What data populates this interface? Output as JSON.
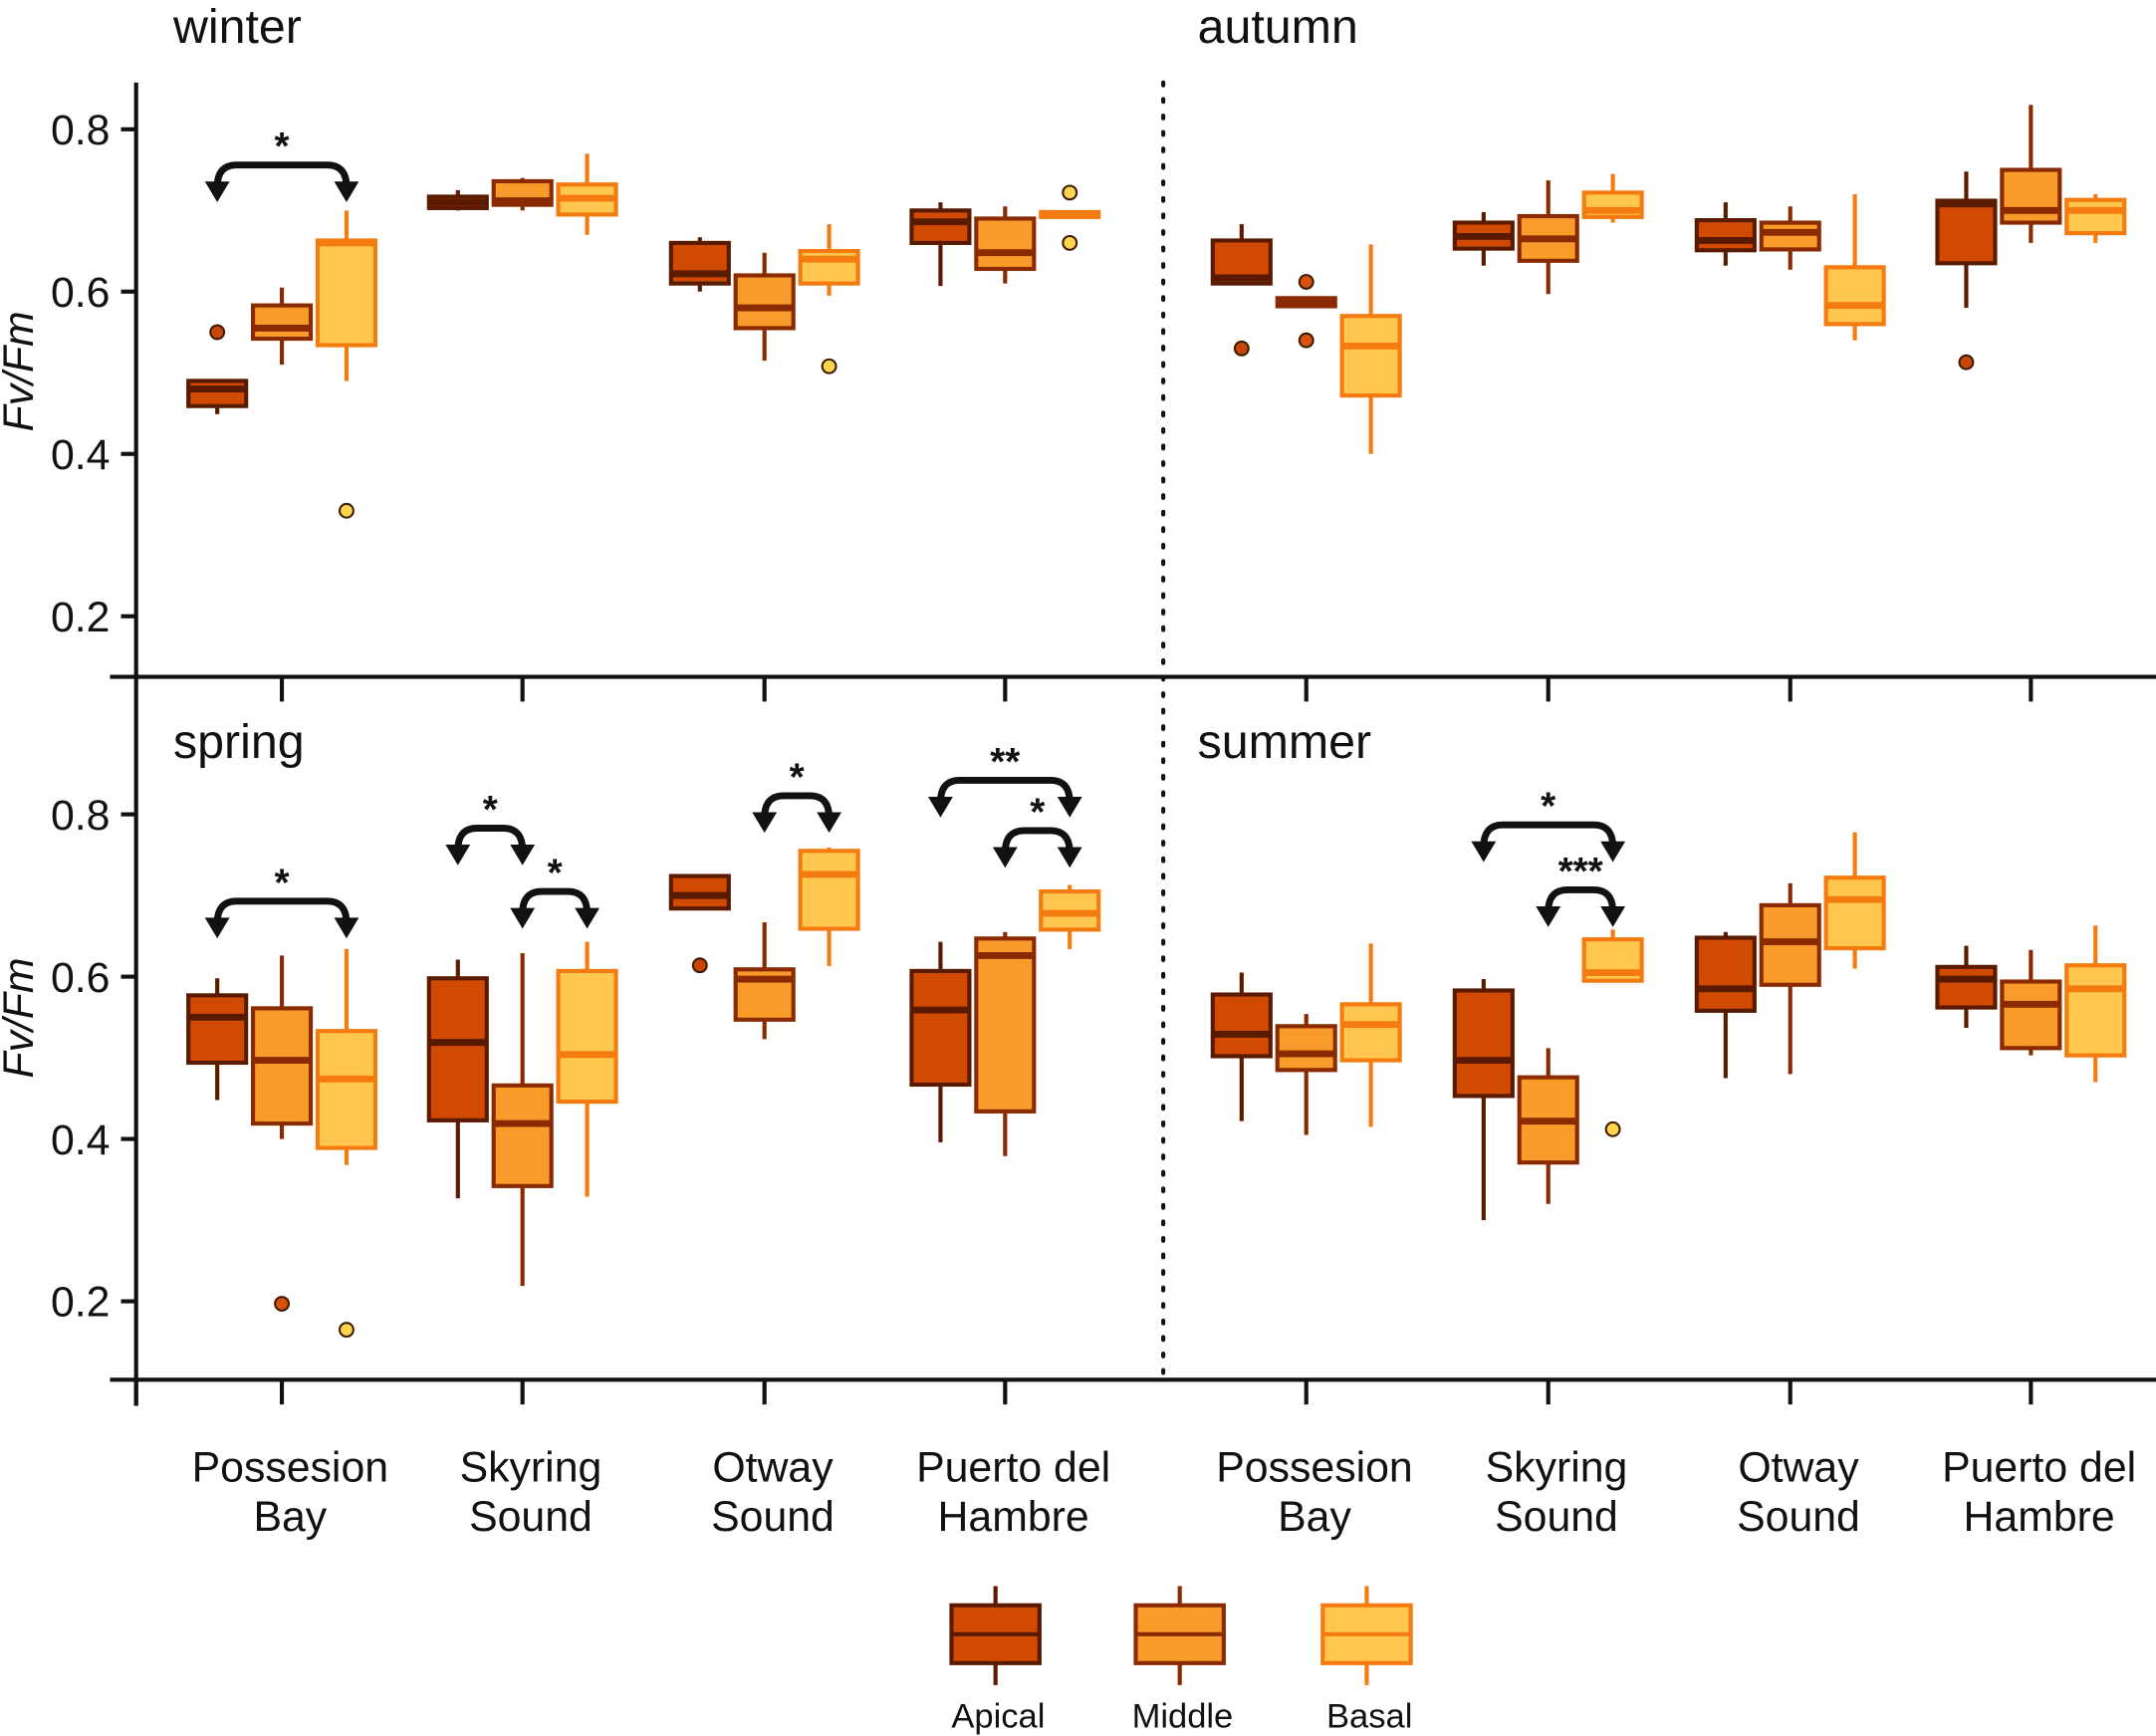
{
  "chart_data": {
    "type": "box",
    "ylabel": "Fv/Fm",
    "yticks": [
      "0.2",
      "0.4",
      "0.6",
      "0.8"
    ],
    "sites": [
      {
        "lines": [
          "Possesion",
          "Bay"
        ]
      },
      {
        "lines": [
          "Skyring",
          "Sound"
        ]
      },
      {
        "lines": [
          "Otway",
          "Sound"
        ]
      },
      {
        "lines": [
          "Puerto del",
          "Hambre"
        ]
      }
    ],
    "groups": [
      {
        "name": "Apical",
        "fill": "#d04a02",
        "stroke": "#5a1a00",
        "median": "#5a1a00",
        "outlier": "#c8460a"
      },
      {
        "name": "Middle",
        "fill": "#f99b2a",
        "stroke": "#8a2a00",
        "median": "#8a2a00",
        "outlier": "#d9520c"
      },
      {
        "name": "Basal",
        "fill": "#ffc74f",
        "stroke": "#f47b10",
        "median": "#f47b10",
        "outlier": "#ffd54f"
      }
    ],
    "box_format": "[whisker_low, q1, median, q3, whisker_high, outliers]",
    "panels": [
      {
        "season": "winter",
        "position": "top-left",
        "ylim": [
          0.125,
          0.857
        ],
        "boxes": [
          [
            [
              0.449,
              0.459,
              0.48,
              0.49,
              0.49,
              [
                0.55
              ]
            ],
            [
              0.51,
              0.542,
              0.555,
              0.583,
              0.605,
              []
            ],
            [
              0.49,
              0.534,
              0.66,
              0.663,
              0.7,
              [
                0.33
              ]
            ]
          ],
          [
            [
              0.7,
              0.703,
              0.71,
              0.717,
              0.725,
              []
            ],
            [
              0.7,
              0.707,
              0.712,
              0.736,
              0.74,
              []
            ],
            [
              0.67,
              0.695,
              0.715,
              0.732,
              0.77,
              []
            ]
          ],
          [
            [
              0.6,
              0.61,
              0.622,
              0.66,
              0.667,
              []
            ],
            [
              0.515,
              0.555,
              0.58,
              0.62,
              0.648,
              []
            ],
            [
              0.595,
              0.61,
              0.64,
              0.65,
              0.683,
              [
                0.508
              ]
            ]
          ],
          [
            [
              0.607,
              0.66,
              0.686,
              0.7,
              0.71,
              []
            ],
            [
              0.61,
              0.628,
              0.648,
              0.69,
              0.705,
              []
            ],
            [
              0.69,
              0.692,
              0.695,
              0.698,
              0.7,
              [
                0.722,
                0.66
              ]
            ]
          ]
        ],
        "annotations": [
          {
            "site": 0,
            "from": 0,
            "to": 2,
            "level": 0.756,
            "label": "*"
          }
        ]
      },
      {
        "season": "autumn",
        "position": "top-right",
        "ylim": [
          0.125,
          0.857
        ],
        "boxes": [
          [
            [
              0.61,
              0.61,
              0.617,
              0.663,
              0.683,
              [
                0.53
              ]
            ],
            [
              0.582,
              0.582,
              0.587,
              0.592,
              0.592,
              [
                0.612,
                0.54
              ]
            ],
            [
              0.4,
              0.472,
              0.533,
              0.57,
              0.658,
              []
            ]
          ],
          [
            [
              0.632,
              0.653,
              0.668,
              0.685,
              0.698,
              []
            ],
            [
              0.597,
              0.638,
              0.665,
              0.693,
              0.737,
              []
            ],
            [
              0.685,
              0.692,
              0.7,
              0.722,
              0.745,
              []
            ]
          ],
          [
            [
              0.632,
              0.651,
              0.663,
              0.688,
              0.71,
              []
            ],
            [
              0.627,
              0.652,
              0.673,
              0.685,
              0.705,
              []
            ],
            [
              0.54,
              0.56,
              0.583,
              0.63,
              0.72,
              []
            ]
          ],
          [
            [
              0.58,
              0.635,
              0.708,
              0.712,
              0.748,
              [
                0.513
              ]
            ],
            [
              0.66,
              0.685,
              0.7,
              0.75,
              0.83,
              []
            ],
            [
              0.66,
              0.672,
              0.7,
              0.713,
              0.72,
              []
            ]
          ]
        ],
        "annotations": []
      },
      {
        "season": "spring",
        "position": "bottom-left",
        "ylim": [
          0.103,
          0.969
        ],
        "boxes": [
          [
            [
              0.448,
              0.494,
              0.55,
              0.577,
              0.598,
              []
            ],
            [
              0.4,
              0.419,
              0.497,
              0.561,
              0.626,
              [
                0.197
              ]
            ],
            [
              0.368,
              0.389,
              0.474,
              0.533,
              0.634,
              [
                0.165
              ]
            ]
          ],
          [
            [
              0.327,
              0.423,
              0.519,
              0.598,
              0.621,
              []
            ],
            [
              0.219,
              0.342,
              0.419,
              0.466,
              0.629,
              []
            ],
            [
              0.329,
              0.446,
              0.504,
              0.607,
              0.643,
              []
            ]
          ],
          [
            [
              0.684,
              0.684,
              0.7,
              0.724,
              0.724,
              [
                0.614
              ]
            ],
            [
              0.523,
              0.547,
              0.597,
              0.609,
              0.667,
              []
            ],
            [
              0.613,
              0.659,
              0.726,
              0.755,
              0.759,
              []
            ]
          ],
          [
            [
              0.396,
              0.467,
              0.559,
              0.607,
              0.643,
              []
            ],
            [
              0.379,
              0.434,
              0.626,
              0.647,
              0.655,
              []
            ],
            [
              0.634,
              0.658,
              0.678,
              0.705,
              0.713,
              []
            ]
          ]
        ],
        "annotations": [
          {
            "site": 0,
            "from": 0,
            "to": 2,
            "level": 0.693,
            "label": "*"
          },
          {
            "site": 1,
            "from": 0,
            "to": 1,
            "level": 0.783,
            "label": "*"
          },
          {
            "site": 1,
            "from": 1,
            "to": 2,
            "level": 0.705,
            "label": "*"
          },
          {
            "site": 2,
            "from": 1,
            "to": 2,
            "level": 0.823,
            "label": "*"
          },
          {
            "site": 3,
            "from": 0,
            "to": 2,
            "level": 0.842,
            "label": "**"
          },
          {
            "site": 3,
            "from": 1,
            "to": 2,
            "level": 0.78,
            "label": "*"
          }
        ]
      },
      {
        "season": "summer",
        "position": "bottom-right",
        "ylim": [
          0.103,
          0.969
        ],
        "boxes": [
          [
            [
              0.422,
              0.502,
              0.529,
              0.578,
              0.605,
              []
            ],
            [
              0.405,
              0.485,
              0.505,
              0.539,
              0.554,
              []
            ],
            [
              0.415,
              0.497,
              0.541,
              0.566,
              0.641,
              []
            ]
          ],
          [
            [
              0.3,
              0.453,
              0.497,
              0.583,
              0.597,
              []
            ],
            [
              0.32,
              0.371,
              0.422,
              0.476,
              0.512,
              []
            ],
            [
              0.595,
              0.595,
              0.605,
              0.646,
              0.658,
              [
                0.412
              ]
            ]
          ],
          [
            [
              0.475,
              0.558,
              0.585,
              0.648,
              0.655,
              []
            ],
            [
              0.48,
              0.59,
              0.643,
              0.688,
              0.715,
              []
            ],
            [
              0.61,
              0.635,
              0.695,
              0.722,
              0.778,
              []
            ]
          ],
          [
            [
              0.537,
              0.562,
              0.597,
              0.612,
              0.638,
              []
            ],
            [
              0.503,
              0.512,
              0.566,
              0.594,
              0.633,
              []
            ],
            [
              0.47,
              0.503,
              0.585,
              0.614,
              0.663,
              []
            ]
          ]
        ],
        "annotations": [
          {
            "site": 1,
            "from": 0,
            "to": 2,
            "level": 0.787,
            "label": "*"
          },
          {
            "site": 1,
            "from": 1,
            "to": 2,
            "level": 0.707,
            "label": "***"
          }
        ]
      }
    ],
    "legend": {
      "placement": "bottom-center",
      "items": [
        "Apical",
        "Middle",
        "Basal"
      ]
    }
  }
}
